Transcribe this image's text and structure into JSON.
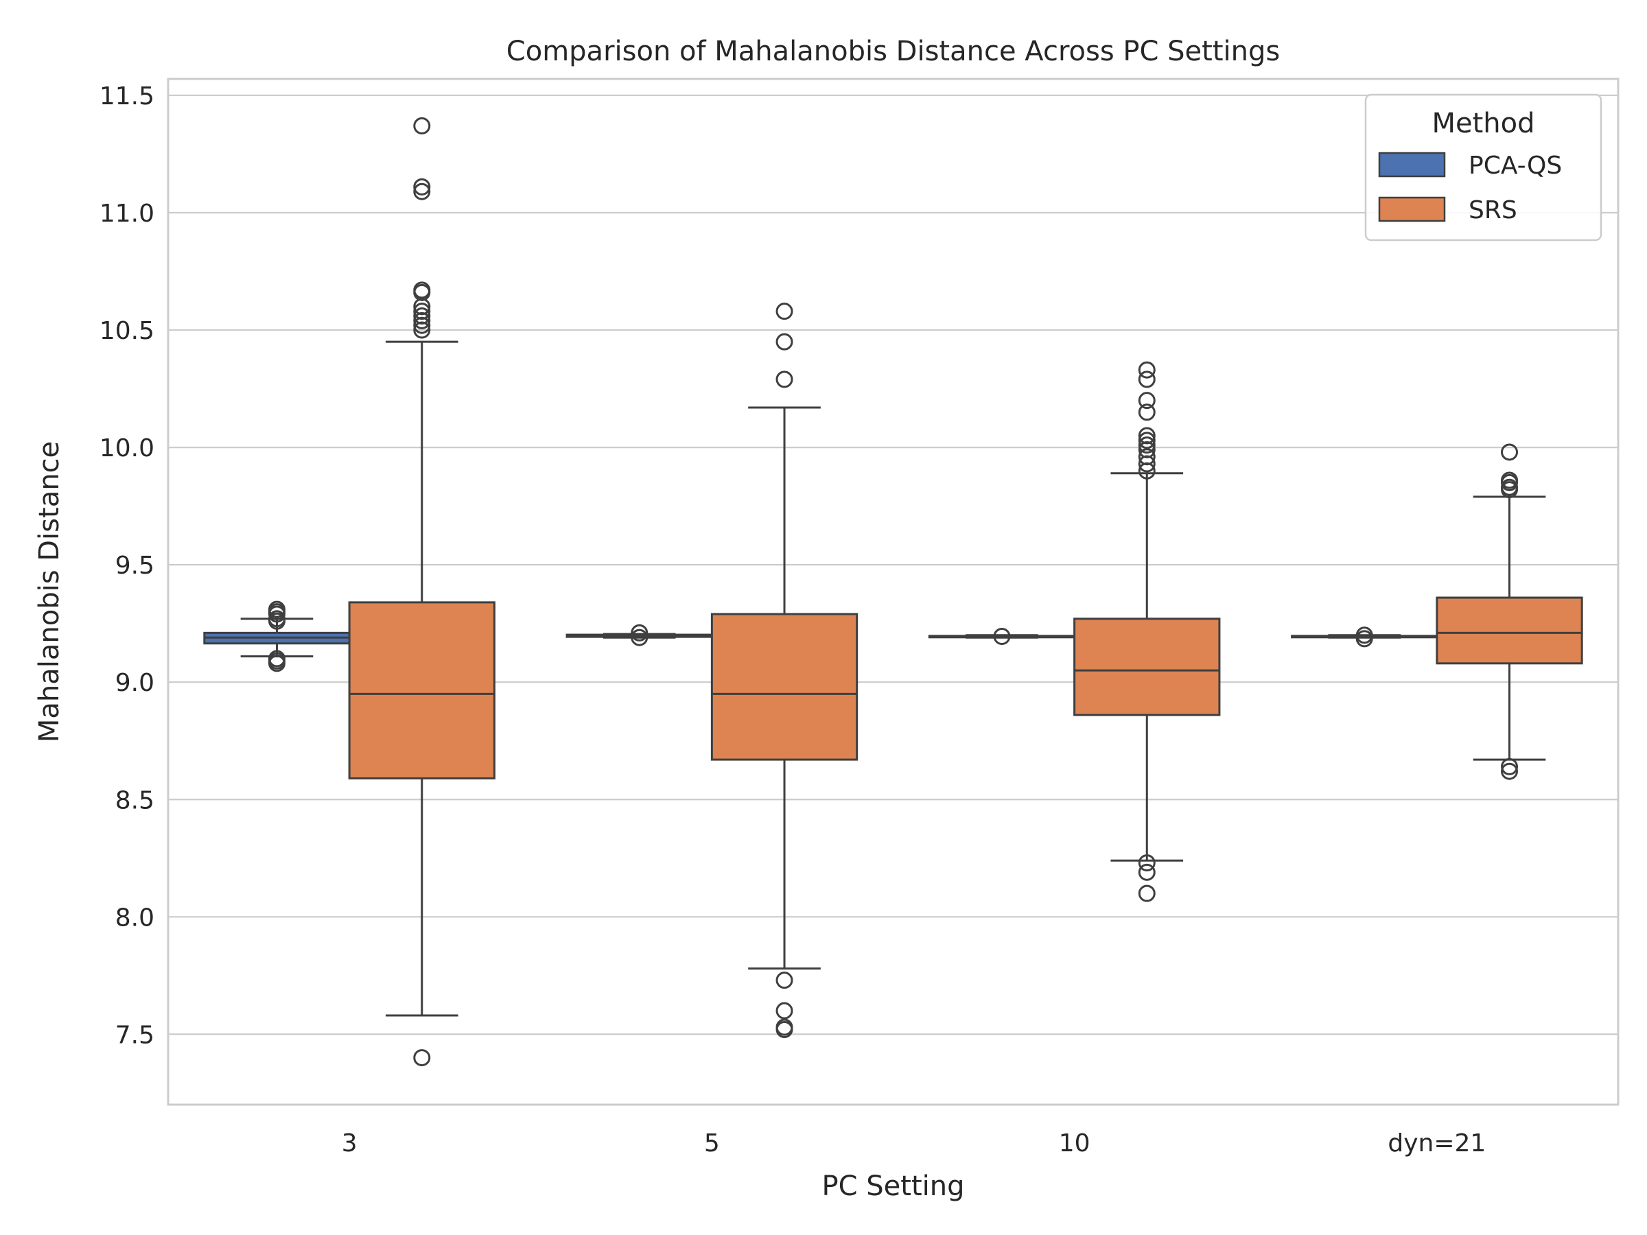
{
  "chart_data": {
    "type": "boxplot",
    "title": "Comparison of Mahalanobis Distance Across PC Settings",
    "xlabel": "PC Setting",
    "ylabel": "Mahalanobis Distance",
    "categories": [
      "3",
      "5",
      "10",
      "dyn=21"
    ],
    "ylim": [
      7.2,
      11.57
    ],
    "yticks": [
      7.5,
      8.0,
      8.5,
      9.0,
      9.5,
      10.0,
      10.5,
      11.0,
      11.5
    ],
    "ytick_labels": [
      "7.5",
      "8.0",
      "8.5",
      "9.0",
      "9.5",
      "10.0",
      "10.5",
      "11.0",
      "11.5"
    ],
    "grid": true,
    "legend": {
      "title": "Method",
      "position": "top-right",
      "entries": [
        "PCA-QS",
        "SRS"
      ]
    },
    "series": [
      {
        "name": "PCA-QS",
        "color": "#4c72b0",
        "boxes": [
          {
            "category": "3",
            "whisker_low": 9.11,
            "q1": 9.165,
            "median": 9.19,
            "q3": 9.21,
            "whisker_high": 9.27,
            "outliers": [
              9.3,
              9.31,
              9.29,
              9.27,
              9.26,
              9.1,
              9.08,
              9.09
            ]
          },
          {
            "category": "5",
            "whisker_low": 9.19,
            "q1": 9.193,
            "median": 9.197,
            "q3": 9.202,
            "whisker_high": 9.205,
            "outliers": [
              9.21,
              9.19
            ]
          },
          {
            "category": "10",
            "whisker_low": 9.19,
            "q1": 9.193,
            "median": 9.195,
            "q3": 9.197,
            "whisker_high": 9.2,
            "outliers": [
              9.195
            ]
          },
          {
            "category": "dyn=21",
            "whisker_low": 9.19,
            "q1": 9.193,
            "median": 9.195,
            "q3": 9.197,
            "whisker_high": 9.2,
            "outliers": [
              9.2,
              9.185
            ]
          }
        ]
      },
      {
        "name": "SRS",
        "color": "#dd8452",
        "boxes": [
          {
            "category": "3",
            "whisker_low": 7.58,
            "q1": 8.59,
            "median": 8.95,
            "q3": 9.34,
            "whisker_high": 10.45,
            "outliers": [
              11.37,
              11.11,
              11.09,
              10.67,
              10.66,
              10.6,
              10.58,
              10.56,
              10.54,
              10.52,
              10.5,
              7.4
            ]
          },
          {
            "category": "5",
            "whisker_low": 7.78,
            "q1": 8.67,
            "median": 8.95,
            "q3": 9.29,
            "whisker_high": 10.17,
            "outliers": [
              10.58,
              10.45,
              10.29,
              7.73,
              7.6,
              7.53,
              7.52
            ]
          },
          {
            "category": "10",
            "whisker_low": 8.24,
            "q1": 8.86,
            "median": 9.05,
            "q3": 9.27,
            "whisker_high": 9.89,
            "outliers": [
              10.33,
              10.29,
              10.2,
              10.15,
              10.05,
              10.03,
              10.01,
              9.99,
              9.96,
              9.93,
              9.9,
              8.23,
              8.19,
              8.1
            ]
          },
          {
            "category": "dyn=21",
            "whisker_low": 8.67,
            "q1": 9.08,
            "median": 9.21,
            "q3": 9.36,
            "whisker_high": 9.79,
            "outliers": [
              9.98,
              9.86,
              9.85,
              9.83,
              9.82,
              8.64,
              8.62
            ]
          }
        ]
      }
    ]
  }
}
